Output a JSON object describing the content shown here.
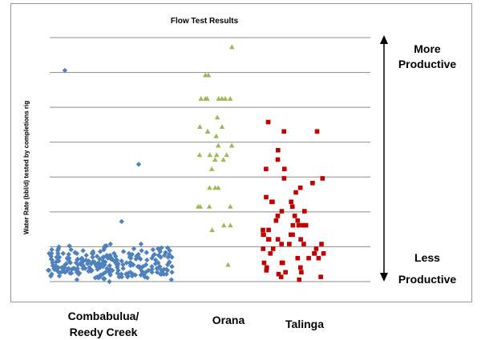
{
  "chart_data": {
    "type": "scatter",
    "title": "Flow Test Results",
    "ylabel": "Water Rate (bbl/d) tested by completions rig",
    "xlabel": "",
    "gridlines": 8,
    "grid": true,
    "legend": "none",
    "categories": [
      "Combabulua/ Reedy Creek",
      "Orana",
      "Talinga"
    ],
    "series": [
      {
        "category": "Combabulua/ Reedy Creek",
        "marker": "diamond",
        "color": "#4f81bd",
        "values": [
          0.0,
          0.12,
          0.15,
          0.08,
          0.2,
          0.25,
          0.3,
          0.35,
          0.05,
          0.18,
          0.22,
          0.1,
          0.28,
          0.33,
          0.4,
          0.14,
          0.06,
          0.24,
          0.19,
          0.27,
          0.09,
          0.16,
          0.31,
          0.21,
          0.11,
          0.26,
          0.36,
          0.13,
          0.07,
          0.23,
          0.29,
          0.17,
          0.38,
          0.02,
          0.34,
          0.1,
          0.2,
          0.15,
          0.25,
          0.05,
          0.3,
          0.12,
          0.22,
          0.08,
          0.18,
          0.28,
          0.14,
          0.24,
          0.32,
          0.04,
          0.16,
          0.26,
          0.1,
          0.2,
          0.36,
          0.06,
          0.14,
          0.24,
          0.18,
          0.3,
          0.12,
          0.22,
          0.08,
          0.28,
          0.16,
          0.34,
          0.03,
          0.26,
          0.2,
          0.1,
          0.4,
          0.15,
          0.25,
          0.07,
          0.19,
          0.29,
          0.13,
          0.23,
          0.33,
          0.09,
          0.17,
          0.27,
          0.11,
          0.21,
          0.31,
          0.05,
          0.35,
          0.14,
          0.24,
          0.18,
          0.12,
          0.3,
          0.08,
          0.2,
          0.26,
          0.16,
          0.38,
          0.1,
          0.22,
          0.28,
          0.15,
          0.04,
          0.32,
          0.18,
          0.24,
          0.12,
          0.27,
          0.07,
          0.2,
          0.14,
          0.3,
          0.1,
          0.25,
          0.17,
          0.35,
          0.06,
          0.22,
          0.13,
          0.28,
          0.19,
          0.09,
          0.16,
          0.33,
          0.11,
          0.21,
          0.26,
          0.02,
          0.14,
          0.23,
          0.18,
          0.29,
          0.12,
          0.08,
          0.37,
          0.2,
          0.15,
          0.25,
          0.05,
          0.3,
          0.1,
          0.18,
          0.24,
          0.13,
          0.28,
          0.16,
          0.06,
          0.21,
          0.32,
          0.11,
          0.2,
          0.15,
          0.26,
          0.09,
          0.23,
          0.34,
          0.14,
          0.19,
          0.04,
          0.27,
          0.12,
          0.22,
          0.17,
          0.3,
          0.08,
          0.25,
          0.13,
          0.36,
          0.18,
          0.1,
          0.2,
          0.28,
          0.15,
          0.07,
          0.24,
          0.31,
          0.12,
          0.19,
          0.26,
          0.05,
          0.16,
          0.22,
          0.14,
          0.33,
          0.09,
          0.2,
          0.27,
          0.11,
          0.18,
          0.24,
          0.03,
          0.15,
          0.29,
          0.13,
          0.21,
          0.38,
          0.1,
          0.17,
          0.25,
          0.08,
          0.22,
          0.14,
          0.3,
          0.19,
          0.06,
          0.26,
          0.12,
          0.2,
          0.16,
          0.34,
          0.1,
          0.23,
          0.15,
          0.28,
          0.08,
          0.18,
          0.13,
          0.25,
          0.2,
          0.11,
          0.32,
          0.16,
          0.05,
          0.22,
          0.14,
          0.27,
          0.09,
          0.19,
          0.24,
          0.12,
          0.3,
          0.17,
          0.07,
          0.21,
          0.15,
          0.26,
          0.1,
          0.2,
          0.13,
          0.18,
          0.23,
          0.11,
          0.16,
          0.29,
          0.08,
          0.22,
          0.14,
          0.19,
          0.12,
          0.25,
          0.17,
          0.1,
          0.2,
          0.15,
          0.13,
          0.18,
          0.08,
          0.12,
          0.16,
          0.1,
          0.14,
          2.25,
          1.25,
          0.64
        ]
      },
      {
        "category": "Orana",
        "marker": "triangle",
        "color": "#9bbb59",
        "values": [
          2.5,
          2.2,
          2.2,
          1.95,
          1.95,
          1.95,
          1.95,
          1.95,
          1.95,
          1.95,
          1.75,
          1.65,
          1.65,
          1.45,
          1.45,
          1.6,
          1.6,
          1.55,
          1.35,
          1.35,
          1.35,
          1.35,
          1.3,
          1.3,
          1.0,
          1.0,
          1.0,
          0.8,
          0.8,
          0.8,
          0.8,
          0.6,
          0.6,
          0.55,
          0.18,
          1.2
        ]
      },
      {
        "category": "Talinga",
        "marker": "square",
        "color": "#c00000",
        "values": [
          1.7,
          1.6,
          1.6,
          1.4,
          1.3,
          1.2,
          1.2,
          1.1,
          1.1,
          1.05,
          1.0,
          0.95,
          0.9,
          0.85,
          0.85,
          0.8,
          0.75,
          0.7,
          0.7,
          0.65,
          0.65,
          0.6,
          0.6,
          0.6,
          0.55,
          0.55,
          0.5,
          0.5,
          0.5,
          0.45,
          0.45,
          0.45,
          0.4,
          0.4,
          0.4,
          0.4,
          0.35,
          0.35,
          0.35,
          0.3,
          0.3,
          0.3,
          0.25,
          0.25,
          0.25,
          0.2,
          0.2,
          0.15,
          0.15,
          0.1,
          0.1,
          0.05,
          0.05,
          0.02,
          0.85,
          0.75,
          0.6,
          0.5,
          0.45,
          0.3,
          0.2,
          0.12,
          0.08
        ]
      }
    ],
    "annotations": {
      "top_line1": "More",
      "top_line2": "Productive",
      "bottom_line1": "Less",
      "bottom_line2": "Productive"
    }
  }
}
